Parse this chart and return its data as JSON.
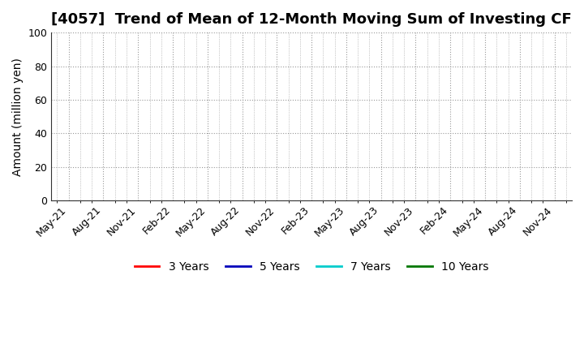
{
  "title": "[4057]  Trend of Mean of 12-Month Moving Sum of Investing CF",
  "ylabel": "Amount (million yen)",
  "ylim": [
    0,
    100
  ],
  "yticks": [
    0,
    20,
    40,
    60,
    80,
    100
  ],
  "x_labels": [
    "May-21",
    "Aug-21",
    "Nov-21",
    "Feb-22",
    "May-22",
    "Aug-22",
    "Nov-22",
    "Feb-23",
    "May-23",
    "Aug-23",
    "Nov-23",
    "Feb-24",
    "May-24",
    "Aug-24",
    "Nov-24"
  ],
  "background_color": "#ffffff",
  "grid_color": "#999999",
  "legend_entries": [
    {
      "label": "3 Years",
      "color": "#ff0000"
    },
    {
      "label": "5 Years",
      "color": "#0000bb"
    },
    {
      "label": "7 Years",
      "color": "#00cccc"
    },
    {
      "label": "10 Years",
      "color": "#007700"
    }
  ],
  "title_fontsize": 13,
  "axis_label_fontsize": 10,
  "tick_fontsize": 9
}
